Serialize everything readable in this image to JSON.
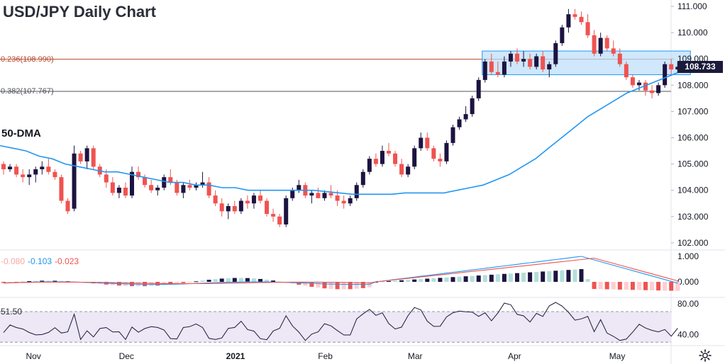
{
  "title": "USD/JPY Daily Chart",
  "indicator_label": "50-DMA",
  "fib_levels": [
    {
      "label": "0.236(108.990)",
      "value": 108.99
    },
    {
      "label": "0.382(107.767)",
      "value": 107.767
    }
  ],
  "last_price": "108.733",
  "macd_values": {
    "hist": "-0.080",
    "macd": "-0.103",
    "signal": "-0.023"
  },
  "rsi_value": "51.50",
  "colors": {
    "up": "#ef5350",
    "down": "#1c1340",
    "ma": "#2196f3",
    "box_fill": "#bbdefb",
    "box_border": "#2196f3",
    "fib1": "#b7472a",
    "fib2": "#50535e",
    "macd_line": "#2196f3",
    "signal_line": "#ef5350",
    "rsi_fill": "#ede7f6",
    "rsi_line": "#1a1a3a"
  },
  "chart_data": {
    "type": "candlestick",
    "title": "USD/JPY Daily Chart",
    "y_ticks": [
      "111.000",
      "110.000",
      "109.000",
      "108.000",
      "107.000",
      "106.000",
      "105.000",
      "104.000",
      "103.000",
      "102.000"
    ],
    "ylim": [
      101.8,
      111.3
    ],
    "x_ticks": [
      {
        "label": "Nov",
        "date": "2020-11-02"
      },
      {
        "label": "Dec",
        "date": "2020-12-01"
      },
      {
        "label": "2021",
        "date": "2021-01-04"
      },
      {
        "label": "Feb",
        "date": "2021-02-01"
      },
      {
        "label": "Mar",
        "date": "2021-03-01"
      },
      {
        "label": "Apr",
        "date": "2021-04-01"
      },
      {
        "label": "May",
        "date": "2021-05-03"
      }
    ],
    "candles": [
      [
        105.0,
        105.1,
        104.6,
        104.8
      ],
      [
        104.8,
        105.0,
        104.7,
        104.9
      ],
      [
        104.9,
        105.0,
        104.5,
        104.6
      ],
      [
        104.6,
        104.8,
        104.3,
        104.5
      ],
      [
        104.5,
        104.8,
        104.2,
        104.6
      ],
      [
        104.6,
        104.9,
        104.3,
        104.8
      ],
      [
        104.8,
        105.1,
        104.6,
        104.9
      ],
      [
        104.9,
        105.2,
        104.6,
        104.7
      ],
      [
        104.7,
        104.8,
        104.4,
        104.5
      ],
      [
        104.5,
        104.6,
        103.5,
        103.6
      ],
      [
        103.6,
        103.7,
        103.1,
        103.2
      ],
      [
        103.3,
        105.7,
        103.2,
        105.4
      ],
      [
        105.4,
        105.5,
        105.0,
        105.1
      ],
      [
        105.1,
        105.7,
        104.8,
        105.6
      ],
      [
        105.6,
        105.7,
        104.8,
        104.9
      ],
      [
        104.9,
        105.0,
        104.5,
        104.6
      ],
      [
        104.6,
        104.8,
        104.1,
        104.3
      ],
      [
        104.3,
        104.5,
        103.8,
        103.9
      ],
      [
        103.9,
        104.2,
        103.7,
        104.1
      ],
      [
        104.1,
        104.3,
        103.7,
        103.8
      ],
      [
        103.8,
        104.9,
        103.7,
        104.7
      ],
      [
        104.7,
        104.9,
        104.4,
        104.5
      ],
      [
        104.5,
        104.6,
        104.1,
        104.2
      ],
      [
        104.2,
        104.4,
        103.9,
        104.0
      ],
      [
        104.0,
        104.2,
        103.8,
        104.1
      ],
      [
        104.1,
        104.6,
        104.0,
        104.5
      ],
      [
        104.5,
        104.8,
        104.2,
        104.3
      ],
      [
        104.3,
        104.4,
        103.8,
        103.9
      ],
      [
        103.9,
        104.3,
        103.7,
        104.2
      ],
      [
        104.2,
        104.4,
        104.0,
        104.1
      ],
      [
        104.1,
        104.3,
        104.0,
        104.2
      ],
      [
        104.2,
        104.7,
        104.1,
        104.3
      ],
      [
        104.3,
        104.5,
        103.7,
        103.8
      ],
      [
        103.8,
        104.0,
        103.4,
        103.5
      ],
      [
        103.5,
        103.7,
        103.0,
        103.2
      ],
      [
        103.2,
        103.5,
        102.9,
        103.4
      ],
      [
        103.4,
        103.6,
        103.1,
        103.2
      ],
      [
        103.2,
        103.7,
        103.1,
        103.6
      ],
      [
        103.6,
        103.8,
        103.3,
        103.5
      ],
      [
        103.5,
        103.9,
        103.3,
        103.8
      ],
      [
        103.8,
        104.0,
        103.5,
        103.6
      ],
      [
        103.6,
        103.7,
        103.0,
        103.1
      ],
      [
        103.1,
        103.3,
        102.8,
        103.0
      ],
      [
        103.0,
        103.1,
        102.6,
        102.7
      ],
      [
        102.7,
        103.8,
        102.6,
        103.7
      ],
      [
        103.7,
        104.1,
        103.6,
        104.0
      ],
      [
        104.0,
        104.4,
        103.9,
        104.2
      ],
      [
        104.2,
        104.3,
        103.7,
        103.8
      ],
      [
        103.8,
        104.0,
        103.5,
        103.9
      ],
      [
        103.9,
        104.1,
        103.7,
        103.7
      ],
      [
        103.7,
        104.0,
        103.6,
        103.9
      ],
      [
        103.9,
        104.2,
        103.7,
        103.8
      ],
      [
        103.8,
        104.0,
        103.4,
        103.6
      ],
      [
        103.6,
        103.8,
        103.3,
        103.5
      ],
      [
        103.5,
        103.8,
        103.4,
        103.7
      ],
      [
        103.7,
        104.3,
        103.6,
        104.2
      ],
      [
        104.2,
        104.8,
        104.1,
        104.7
      ],
      [
        104.7,
        105.3,
        104.6,
        105.2
      ],
      [
        105.2,
        105.4,
        104.9,
        105.0
      ],
      [
        105.0,
        105.7,
        104.9,
        105.5
      ],
      [
        105.5,
        105.8,
        105.3,
        105.4
      ],
      [
        105.4,
        105.5,
        104.9,
        105.0
      ],
      [
        105.0,
        105.2,
        104.5,
        104.6
      ],
      [
        104.6,
        105.0,
        104.5,
        104.9
      ],
      [
        104.9,
        105.7,
        104.8,
        105.6
      ],
      [
        105.6,
        106.2,
        105.5,
        106.0
      ],
      [
        106.0,
        106.2,
        105.5,
        105.6
      ],
      [
        105.6,
        105.7,
        105.1,
        105.2
      ],
      [
        105.2,
        105.4,
        104.9,
        105.1
      ],
      [
        105.1,
        105.9,
        105.0,
        105.8
      ],
      [
        105.8,
        106.5,
        105.7,
        106.4
      ],
      [
        106.4,
        106.8,
        106.3,
        106.7
      ],
      [
        106.7,
        107.2,
        106.6,
        106.9
      ],
      [
        106.9,
        107.6,
        106.8,
        107.5
      ],
      [
        107.5,
        108.3,
        107.4,
        108.2
      ],
      [
        108.2,
        109.0,
        108.1,
        108.9
      ],
      [
        108.9,
        109.2,
        108.4,
        108.5
      ],
      [
        108.5,
        108.9,
        108.3,
        108.4
      ],
      [
        108.4,
        109.1,
        108.3,
        108.9
      ],
      [
        108.9,
        109.3,
        108.7,
        109.2
      ],
      [
        109.2,
        109.4,
        108.8,
        108.9
      ],
      [
        108.9,
        109.3,
        108.7,
        109.0
      ],
      [
        109.0,
        109.2,
        108.6,
        108.7
      ],
      [
        108.7,
        109.2,
        108.6,
        109.1
      ],
      [
        109.1,
        109.3,
        108.5,
        108.6
      ],
      [
        108.6,
        108.9,
        108.3,
        108.8
      ],
      [
        108.8,
        109.7,
        108.7,
        109.6
      ],
      [
        109.6,
        110.3,
        109.5,
        110.2
      ],
      [
        110.2,
        110.9,
        110.0,
        110.7
      ],
      [
        110.7,
        110.9,
        110.5,
        110.6
      ],
      [
        110.6,
        110.8,
        110.3,
        110.4
      ],
      [
        110.4,
        110.7,
        109.8,
        109.9
      ],
      [
        109.9,
        110.1,
        109.1,
        109.2
      ],
      [
        109.2,
        110.0,
        109.1,
        109.8
      ],
      [
        109.8,
        109.9,
        109.3,
        109.4
      ],
      [
        109.4,
        109.7,
        109.1,
        109.2
      ],
      [
        109.2,
        109.4,
        108.7,
        108.8
      ],
      [
        108.8,
        108.9,
        108.2,
        108.3
      ],
      [
        108.3,
        108.4,
        107.9,
        108.0
      ],
      [
        108.0,
        108.2,
        107.8,
        108.1
      ],
      [
        108.1,
        108.2,
        107.6,
        107.8
      ],
      [
        107.8,
        108.0,
        107.5,
        107.7
      ],
      [
        107.7,
        108.1,
        107.6,
        108.0
      ],
      [
        108.0,
        108.9,
        107.9,
        108.8
      ],
      [
        108.8,
        109.0,
        108.4,
        108.6
      ],
      [
        108.6,
        108.9,
        108.5,
        108.7
      ]
    ],
    "ma50": [
      105.7,
      105.6,
      105.5,
      105.3,
      105.2,
      105.0,
      104.9,
      104.8,
      104.7,
      104.7,
      104.6,
      104.5,
      104.4,
      104.3,
      104.3,
      104.2,
      104.2,
      104.1,
      104.1,
      104.0,
      104.0,
      104.0,
      104.0,
      104.0,
      104.0,
      103.95,
      103.9,
      103.85,
      103.85,
      103.85,
      103.85,
      103.9,
      103.9,
      103.9,
      103.9,
      104.0,
      104.1,
      104.2,
      104.4,
      104.6,
      104.9,
      105.2,
      105.6,
      106.0,
      106.4,
      106.8,
      107.1,
      107.4,
      107.7,
      107.9,
      108.1,
      108.3,
      108.5
    ],
    "rsi_levels": [
      "80.00",
      "40.00"
    ],
    "macd_levels": [
      "1.000",
      "0.000"
    ]
  }
}
